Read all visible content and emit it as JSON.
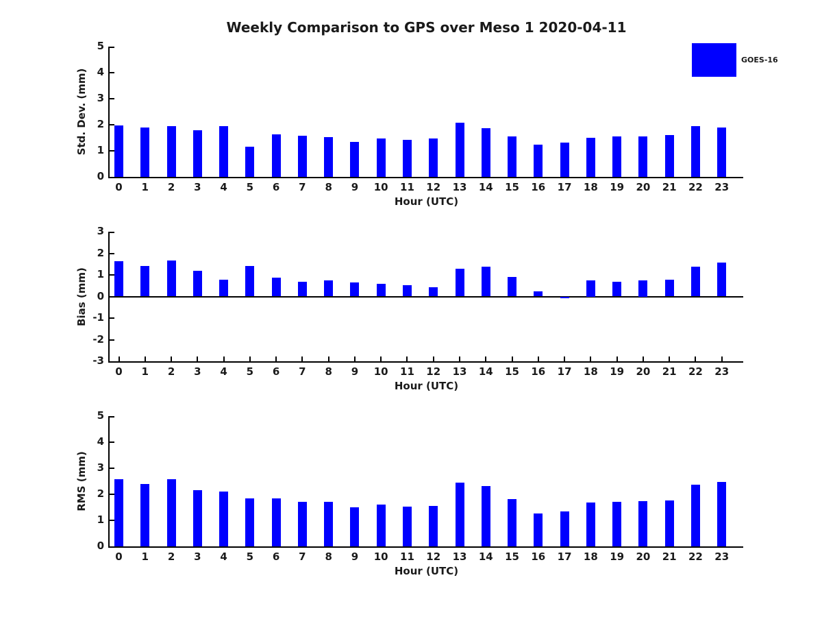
{
  "title": "Weekly Comparison to GPS over Meso 1 2020-04-11",
  "legend": {
    "label": "GOES-16",
    "color": "#0000ff"
  },
  "colors": {
    "bar": "#0000ff",
    "axis": "#000000",
    "text": "#1a1a1a"
  },
  "chart_data": [
    {
      "type": "bar",
      "panel": "std-dev",
      "ylabel": "Std. Dev. (mm)",
      "xlabel": "Hour (UTC)",
      "ylim": [
        0,
        5
      ],
      "yticks": [
        0,
        1,
        2,
        3,
        4,
        5
      ],
      "grid": false,
      "legend_position": "outside-top-right",
      "categories": [
        "0",
        "1",
        "2",
        "3",
        "4",
        "5",
        "6",
        "7",
        "8",
        "9",
        "10",
        "11",
        "12",
        "13",
        "14",
        "15",
        "16",
        "17",
        "18",
        "19",
        "20",
        "21",
        "22",
        "23"
      ],
      "series": [
        {
          "name": "GOES-16",
          "values": [
            1.97,
            1.89,
            1.95,
            1.8,
            1.96,
            1.16,
            1.63,
            1.57,
            1.53,
            1.34,
            1.48,
            1.42,
            1.47,
            2.07,
            1.86,
            1.56,
            1.24,
            1.31,
            1.5,
            1.55,
            1.56,
            1.6,
            1.95,
            1.89
          ]
        }
      ]
    },
    {
      "type": "bar",
      "panel": "bias",
      "ylabel": "Bias (mm)",
      "xlabel": "Hour (UTC)",
      "ylim": [
        -3,
        3
      ],
      "yticks": [
        -3,
        -2,
        -1,
        0,
        1,
        2,
        3
      ],
      "grid": false,
      "categories": [
        "0",
        "1",
        "2",
        "3",
        "4",
        "5",
        "6",
        "7",
        "8",
        "9",
        "10",
        "11",
        "12",
        "13",
        "14",
        "15",
        "16",
        "17",
        "18",
        "19",
        "20",
        "21",
        "22",
        "23"
      ],
      "series": [
        {
          "name": "GOES-16",
          "values": [
            1.63,
            1.42,
            1.66,
            1.19,
            0.78,
            1.42,
            0.87,
            0.67,
            0.74,
            0.65,
            0.6,
            0.51,
            0.44,
            1.28,
            1.37,
            0.91,
            0.23,
            -0.08,
            0.75,
            0.69,
            0.75,
            0.79,
            1.37,
            1.57
          ]
        }
      ]
    },
    {
      "type": "bar",
      "panel": "rms",
      "ylabel": "RMS (mm)",
      "xlabel": "Hour (UTC)",
      "ylim": [
        0,
        5
      ],
      "yticks": [
        0,
        1,
        2,
        3,
        4,
        5
      ],
      "grid": false,
      "categories": [
        "0",
        "1",
        "2",
        "3",
        "4",
        "5",
        "6",
        "7",
        "8",
        "9",
        "10",
        "11",
        "12",
        "13",
        "14",
        "15",
        "16",
        "17",
        "18",
        "19",
        "20",
        "21",
        "22",
        "23"
      ],
      "series": [
        {
          "name": "GOES-16",
          "values": [
            2.57,
            2.39,
            2.57,
            2.17,
            2.11,
            1.85,
            1.84,
            1.71,
            1.72,
            1.51,
            1.6,
            1.53,
            1.55,
            2.46,
            2.31,
            1.82,
            1.26,
            1.34,
            1.69,
            1.71,
            1.74,
            1.77,
            2.36,
            2.48
          ]
        }
      ]
    }
  ]
}
